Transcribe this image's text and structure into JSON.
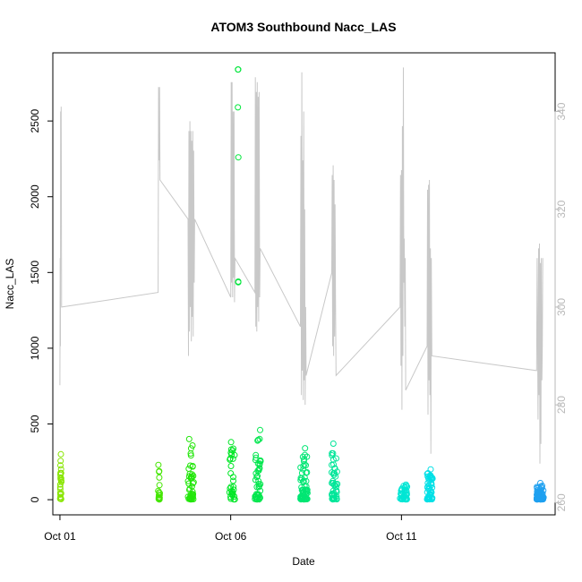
{
  "chart_data": {
    "type": "scatter",
    "title": "ATOM3 Southbound Nacc_LAS",
    "xlabel": "Date",
    "ylabel": "Nacc_LAS",
    "xlim": [
      "2016-09-30T19:00",
      "2016-10-15T12:00"
    ],
    "ylim": [
      -100,
      2950
    ],
    "y2lim": [
      257.5,
      352
    ],
    "x_ticks": [
      {
        "label": "Oct 01",
        "date": "2016-10-01T00:00"
      },
      {
        "label": "Oct 06",
        "date": "2016-10-06T00:00"
      },
      {
        "label": "Oct 11",
        "date": "2016-10-11T00:00"
      }
    ],
    "y_ticks": [
      {
        "label": "0",
        "value": 0
      },
      {
        "label": "500",
        "value": 500
      },
      {
        "label": "1000",
        "value": 1000
      },
      {
        "label": "1500",
        "value": 1500
      },
      {
        "label": "2000",
        "value": 2000
      },
      {
        "label": "2500",
        "value": 2500
      }
    ],
    "y2_ticks": [
      {
        "label": "260",
        "value": 260
      },
      {
        "label": "280",
        "value": 280
      },
      {
        "label": "300",
        "value": 300
      },
      {
        "label": "320",
        "value": 320
      },
      {
        "label": "340",
        "value": 340
      }
    ],
    "secondary_line_color": "#c8c8c8",
    "scatter_groups": [
      {
        "start": "2016-10-01T00:00",
        "end": "2016-10-01T01:00",
        "color": "#88e600",
        "max": 300,
        "n": 24
      },
      {
        "start": "2016-10-03T21:00",
        "end": "2016-10-03T22:30",
        "color": "#44e600",
        "max": 230,
        "n": 18
      },
      {
        "start": "2016-10-04T18:00",
        "end": "2016-10-04T22:00",
        "color": "#22e60a",
        "max": 400,
        "n": 45
      },
      {
        "start": "2016-10-05T23:00",
        "end": "2016-10-06T03:00",
        "color": "#00e626",
        "max": 380,
        "n": 30
      },
      {
        "start": "2016-10-06T05:00",
        "end": "2016-10-06T05:30",
        "color": "#00e63a",
        "max": 2840,
        "n": 6
      },
      {
        "start": "2016-10-06T17:00",
        "end": "2016-10-06T21:00",
        "color": "#00e64d",
        "max": 460,
        "n": 45
      },
      {
        "start": "2016-10-08T01:00",
        "end": "2016-10-08T06:00",
        "color": "#00e673",
        "max": 340,
        "n": 60
      },
      {
        "start": "2016-10-08T23:00",
        "end": "2016-10-09T03:00",
        "color": "#00e699",
        "max": 370,
        "n": 45
      },
      {
        "start": "2016-10-10T23:00",
        "end": "2016-10-11T04:00",
        "color": "#00e6d4",
        "max": 100,
        "n": 40
      },
      {
        "start": "2016-10-11T18:00",
        "end": "2016-10-11T22:00",
        "color": "#00e0e6",
        "max": 200,
        "n": 50
      },
      {
        "start": "2016-10-14T23:00",
        "end": "2016-10-15T04:00",
        "color": "#1ea0f0",
        "max": 110,
        "n": 70
      }
    ],
    "secondary_line": [
      [
        "2016-10-01T00:00",
        284
      ],
      [
        "2016-10-01T00:10",
        310
      ],
      [
        "2016-10-01T00:20",
        292
      ],
      [
        "2016-10-01T00:30",
        340
      ],
      [
        "2016-10-01T00:40",
        320
      ],
      [
        "2016-10-01T00:50",
        341
      ],
      [
        "2016-10-01T01:00",
        328
      ],
      [
        "2016-10-01T01:10",
        300
      ],
      [
        "2016-10-03T21:00",
        303
      ],
      [
        "2016-10-03T21:20",
        345
      ],
      [
        "2016-10-03T21:40",
        330
      ],
      [
        "2016-10-03T22:00",
        345
      ],
      [
        "2016-10-03T22:20",
        326
      ],
      [
        "2016-10-04T18:00",
        318
      ],
      [
        "2016-10-04T18:20",
        290
      ],
      [
        "2016-10-04T18:40",
        336
      ],
      [
        "2016-10-04T19:00",
        295
      ],
      [
        "2016-10-04T19:20",
        338
      ],
      [
        "2016-10-04T19:40",
        300
      ],
      [
        "2016-10-04T20:00",
        336
      ],
      [
        "2016-10-04T20:20",
        293
      ],
      [
        "2016-10-04T20:40",
        334
      ],
      [
        "2016-10-04T21:00",
        298
      ],
      [
        "2016-10-04T21:20",
        336
      ],
      [
        "2016-10-04T21:40",
        294
      ],
      [
        "2016-10-04T22:00",
        332
      ],
      [
        "2016-10-04T22:20",
        305
      ],
      [
        "2016-10-04T22:40",
        318
      ],
      [
        "2016-10-06T00:00",
        302
      ],
      [
        "2016-10-06T00:20",
        346
      ],
      [
        "2016-10-06T00:40",
        305
      ],
      [
        "2016-10-06T01:00",
        346
      ],
      [
        "2016-10-06T01:20",
        302
      ],
      [
        "2016-10-06T01:40",
        340
      ],
      [
        "2016-10-06T02:00",
        306
      ],
      [
        "2016-10-06T02:20",
        340
      ],
      [
        "2016-10-06T02:40",
        301
      ],
      [
        "2016-10-06T03:00",
        310
      ],
      [
        "2016-10-06T17:00",
        303
      ],
      [
        "2016-10-06T17:20",
        347
      ],
      [
        "2016-10-06T17:40",
        296
      ],
      [
        "2016-10-06T18:00",
        344
      ],
      [
        "2016-10-06T18:20",
        295
      ],
      [
        "2016-10-06T18:40",
        346
      ],
      [
        "2016-10-06T19:00",
        300
      ],
      [
        "2016-10-06T19:20",
        343
      ],
      [
        "2016-10-06T19:40",
        297
      ],
      [
        "2016-10-06T20:00",
        344
      ],
      [
        "2016-10-06T20:20",
        302
      ],
      [
        "2016-10-06T20:40",
        312
      ],
      [
        "2016-10-08T01:00",
        296
      ],
      [
        "2016-10-08T01:20",
        335
      ],
      [
        "2016-10-08T01:40",
        282
      ],
      [
        "2016-10-08T02:00",
        348
      ],
      [
        "2016-10-08T02:20",
        287
      ],
      [
        "2016-10-08T02:40",
        330
      ],
      [
        "2016-10-08T03:00",
        281
      ],
      [
        "2016-10-08T03:20",
        340
      ],
      [
        "2016-10-08T03:40",
        285
      ],
      [
        "2016-10-08T04:00",
        320
      ],
      [
        "2016-10-08T04:20",
        280
      ],
      [
        "2016-10-08T04:40",
        300
      ],
      [
        "2016-10-08T05:00",
        286
      ],
      [
        "2016-10-08T23:00",
        307
      ],
      [
        "2016-10-08T23:20",
        327
      ],
      [
        "2016-10-08T23:40",
        292
      ],
      [
        "2016-10-09T00:00",
        329
      ],
      [
        "2016-10-09T00:20",
        290
      ],
      [
        "2016-10-09T00:40",
        326
      ],
      [
        "2016-10-09T01:00",
        294
      ],
      [
        "2016-10-09T01:20",
        321
      ],
      [
        "2016-10-09T01:40",
        302
      ],
      [
        "2016-10-09T02:00",
        286
      ],
      [
        "2016-10-10T23:00",
        300
      ],
      [
        "2016-10-10T23:20",
        327
      ],
      [
        "2016-10-10T23:40",
        288
      ],
      [
        "2016-10-11T00:00",
        328
      ],
      [
        "2016-10-11T00:20",
        279
      ],
      [
        "2016-10-11T00:40",
        337
      ],
      [
        "2016-10-11T01:00",
        290
      ],
      [
        "2016-10-11T01:20",
        349
      ],
      [
        "2016-10-11T01:40",
        305
      ],
      [
        "2016-10-11T02:00",
        314
      ],
      [
        "2016-10-11T02:20",
        296
      ],
      [
        "2016-10-11T02:40",
        310
      ],
      [
        "2016-10-11T03:00",
        283
      ],
      [
        "2016-10-11T18:00",
        292
      ],
      [
        "2016-10-11T18:20",
        324
      ],
      [
        "2016-10-11T18:40",
        278
      ],
      [
        "2016-10-11T19:00",
        325
      ],
      [
        "2016-10-11T19:20",
        285
      ],
      [
        "2016-10-11T19:40",
        326
      ],
      [
        "2016-10-11T20:00",
        282
      ],
      [
        "2016-10-11T20:20",
        312
      ],
      [
        "2016-10-11T20:40",
        270
      ],
      [
        "2016-10-11T21:00",
        310
      ],
      [
        "2016-10-11T21:20",
        290
      ],
      [
        "2016-10-14T23:00",
        287
      ],
      [
        "2016-10-14T23:20",
        310
      ],
      [
        "2016-10-15T00:00",
        277
      ],
      [
        "2016-10-15T00:20",
        312
      ],
      [
        "2016-10-15T00:40",
        282
      ],
      [
        "2016-10-15T01:00",
        313
      ],
      [
        "2016-10-15T01:20",
        268
      ],
      [
        "2016-10-15T01:40",
        309
      ],
      [
        "2016-10-15T02:00",
        272
      ],
      [
        "2016-10-15T02:20",
        310
      ],
      [
        "2016-10-15T02:40",
        285
      ],
      [
        "2016-10-15T03:00",
        292
      ],
      [
        "2016-10-15T03:20",
        310
      ]
    ]
  }
}
